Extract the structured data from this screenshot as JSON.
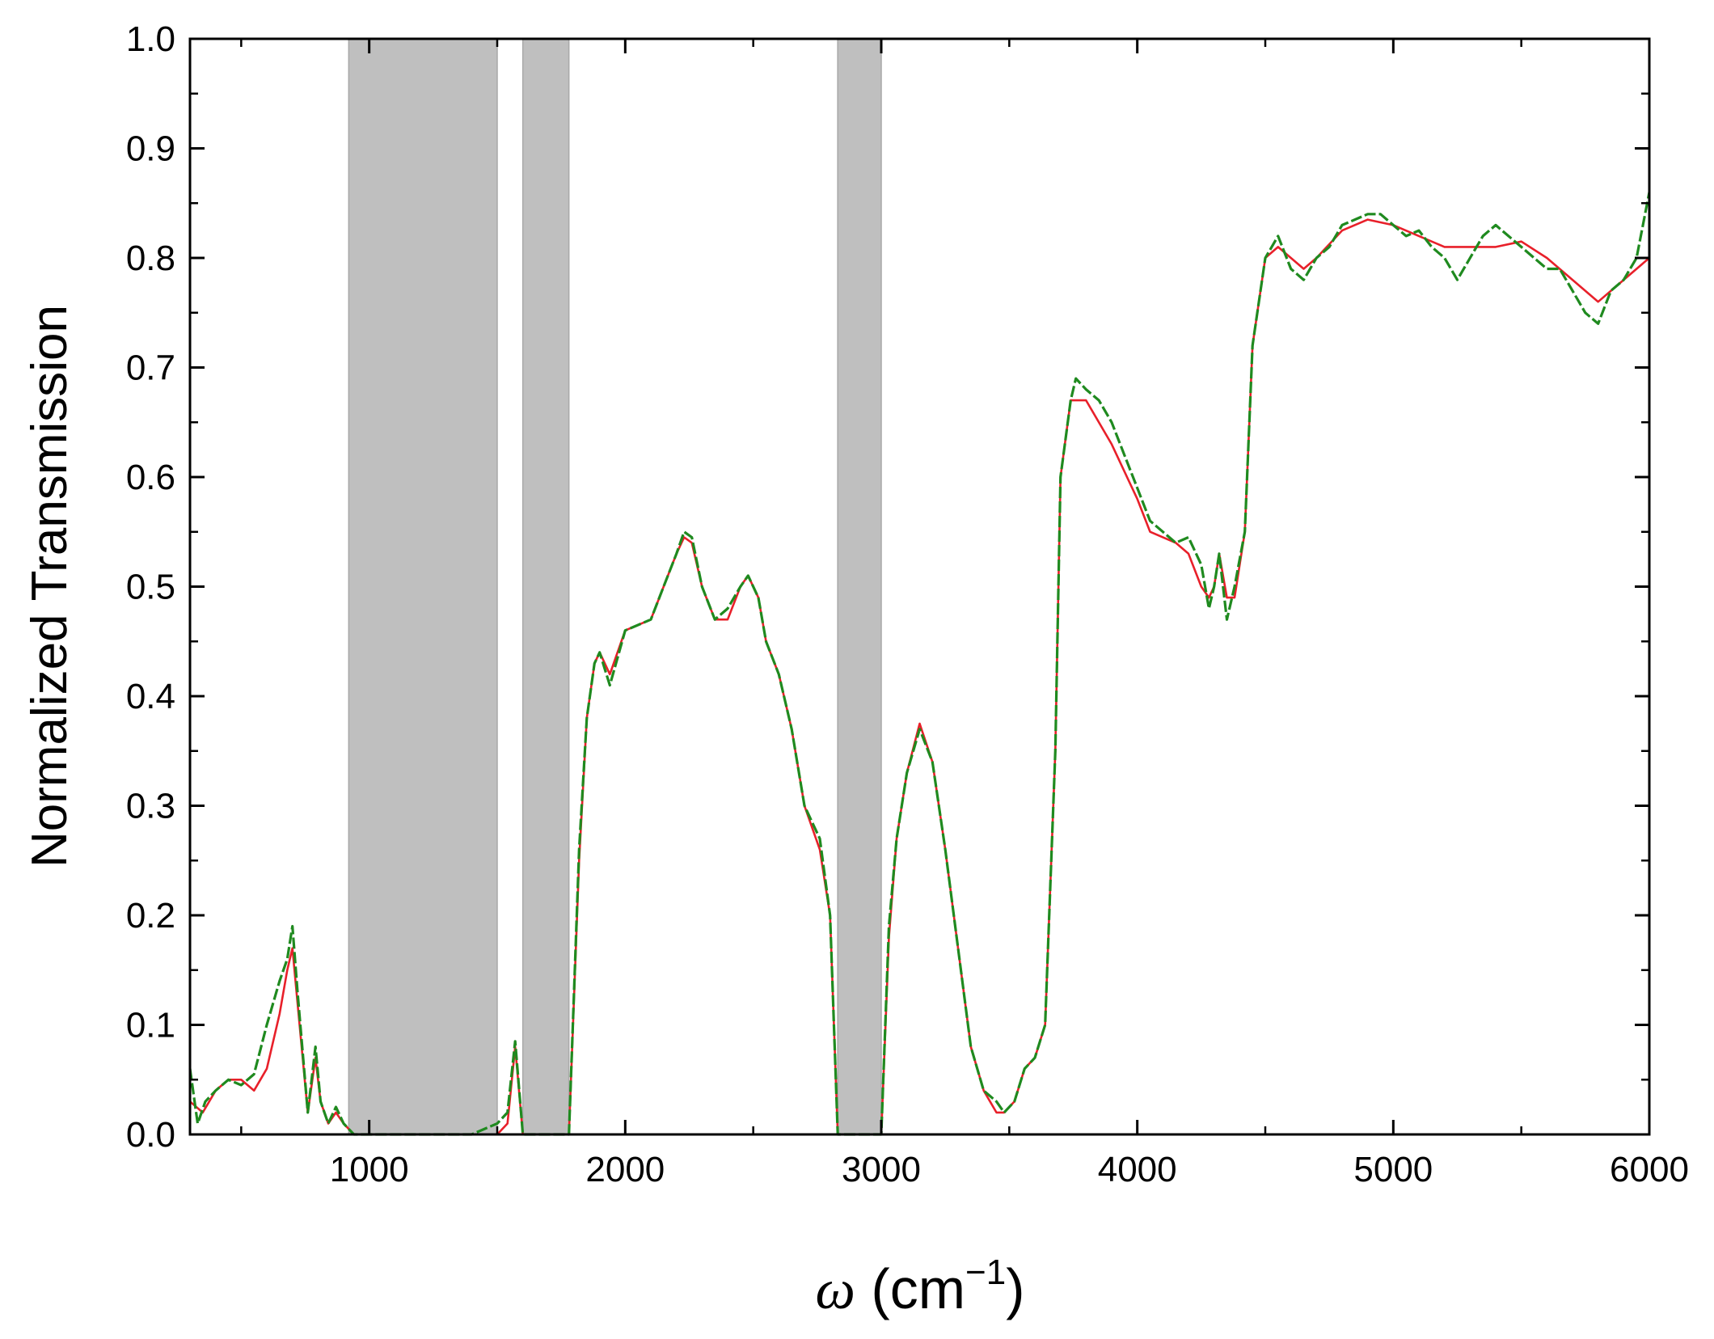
{
  "chart_data": {
    "type": "line",
    "xlabel_symbol": "ω",
    "xlabel_unit_open": " (cm",
    "xlabel_unit_sup": "−1",
    "xlabel_unit_close": ")",
    "ylabel": "Normalized Transmission",
    "xlim": [
      300,
      6000
    ],
    "ylim": [
      0.0,
      1.0
    ],
    "xticks": [
      1000,
      2000,
      3000,
      4000,
      5000,
      6000
    ],
    "xtick_labels": [
      "1000",
      "2000",
      "3000",
      "4000",
      "5000",
      "6000"
    ],
    "yticks": [
      0.0,
      0.1,
      0.2,
      0.3,
      0.4,
      0.5,
      0.6,
      0.7,
      0.8,
      0.9,
      1.0
    ],
    "ytick_labels": [
      "0.0",
      "0.1",
      "0.2",
      "0.3",
      "0.4",
      "0.5",
      "0.6",
      "0.7",
      "0.8",
      "0.9",
      "1.0"
    ],
    "grid": false,
    "legend": "none",
    "shaded_regions": [
      {
        "x0": 920,
        "x1": 1500
      },
      {
        "x0": 1600,
        "x1": 1780
      },
      {
        "x0": 2830,
        "x1": 3000
      }
    ],
    "shade_color": "#bfbfbf",
    "series": [
      {
        "style": "solid",
        "color": "#e8202a",
        "x": [
          300,
          350,
          400,
          450,
          500,
          550,
          600,
          650,
          680,
          700,
          720,
          760,
          790,
          810,
          840,
          870,
          900,
          940,
          1000,
          1500,
          1540,
          1570,
          1600,
          1640,
          1780,
          1820,
          1850,
          1880,
          1900,
          1940,
          2000,
          2100,
          2150,
          2200,
          2230,
          2260,
          2300,
          2350,
          2400,
          2450,
          2480,
          2520,
          2550,
          2600,
          2650,
          2700,
          2760,
          2800,
          2830,
          3000,
          3030,
          3060,
          3100,
          3150,
          3200,
          3250,
          3300,
          3350,
          3400,
          3450,
          3480,
          3520,
          3560,
          3600,
          3640,
          3680,
          3700,
          3740,
          3800,
          3900,
          4000,
          4050,
          4150,
          4200,
          4250,
          4280,
          4300,
          4320,
          4350,
          4380,
          4420,
          4450,
          4500,
          4550,
          4600,
          4650,
          4700,
          4800,
          4900,
          5000,
          5100,
          5200,
          5300,
          5400,
          5500,
          5600,
          5700,
          5800,
          5900,
          6000
        ],
        "y": [
          0.03,
          0.02,
          0.04,
          0.05,
          0.05,
          0.04,
          0.06,
          0.11,
          0.15,
          0.17,
          0.12,
          0.02,
          0.07,
          0.03,
          0.01,
          0.02,
          0.01,
          0.0,
          0.0,
          0.0,
          0.01,
          0.08,
          0.0,
          0.0,
          0.0,
          0.25,
          0.38,
          0.43,
          0.44,
          0.42,
          0.46,
          0.47,
          0.5,
          0.53,
          0.545,
          0.54,
          0.5,
          0.47,
          0.47,
          0.5,
          0.51,
          0.49,
          0.45,
          0.42,
          0.37,
          0.3,
          0.26,
          0.2,
          0.0,
          0.0,
          0.18,
          0.27,
          0.33,
          0.375,
          0.34,
          0.26,
          0.17,
          0.08,
          0.04,
          0.02,
          0.02,
          0.03,
          0.06,
          0.07,
          0.1,
          0.35,
          0.6,
          0.67,
          0.67,
          0.63,
          0.58,
          0.55,
          0.54,
          0.53,
          0.5,
          0.49,
          0.5,
          0.53,
          0.49,
          0.49,
          0.55,
          0.72,
          0.8,
          0.81,
          0.8,
          0.79,
          0.8,
          0.825,
          0.835,
          0.83,
          0.82,
          0.81,
          0.81,
          0.81,
          0.815,
          0.8,
          0.78,
          0.76,
          0.78,
          0.8
        ]
      },
      {
        "style": "dashed",
        "color": "#1f8a1f",
        "x": [
          300,
          330,
          360,
          400,
          450,
          500,
          550,
          600,
          650,
          680,
          700,
          720,
          760,
          790,
          810,
          840,
          870,
          900,
          940,
          1000,
          1400,
          1500,
          1540,
          1570,
          1600,
          1640,
          1780,
          1820,
          1850,
          1880,
          1900,
          1940,
          2000,
          2100,
          2150,
          2200,
          2230,
          2260,
          2300,
          2350,
          2400,
          2450,
          2480,
          2520,
          2550,
          2600,
          2650,
          2700,
          2760,
          2800,
          2830,
          3000,
          3030,
          3060,
          3100,
          3150,
          3200,
          3250,
          3300,
          3350,
          3400,
          3450,
          3480,
          3520,
          3560,
          3600,
          3640,
          3680,
          3700,
          3740,
          3760,
          3800,
          3850,
          3900,
          3950,
          4000,
          4050,
          4100,
          4150,
          4200,
          4250,
          4280,
          4300,
          4320,
          4350,
          4380,
          4420,
          4450,
          4500,
          4550,
          4600,
          4650,
          4700,
          4750,
          4800,
          4850,
          4900,
          4950,
          5000,
          5050,
          5100,
          5150,
          5200,
          5250,
          5300,
          5350,
          5400,
          5450,
          5500,
          5550,
          5600,
          5650,
          5700,
          5750,
          5800,
          5850,
          5900,
          5950,
          6000
        ],
        "y": [
          0.06,
          0.01,
          0.03,
          0.04,
          0.05,
          0.045,
          0.055,
          0.1,
          0.14,
          0.16,
          0.19,
          0.13,
          0.02,
          0.08,
          0.03,
          0.01,
          0.025,
          0.01,
          0.0,
          0.0,
          0.0,
          0.01,
          0.02,
          0.085,
          0.0,
          0.0,
          0.0,
          0.26,
          0.38,
          0.43,
          0.44,
          0.41,
          0.46,
          0.47,
          0.5,
          0.53,
          0.55,
          0.545,
          0.5,
          0.47,
          0.48,
          0.5,
          0.51,
          0.49,
          0.45,
          0.42,
          0.37,
          0.3,
          0.27,
          0.2,
          0.0,
          0.0,
          0.19,
          0.27,
          0.33,
          0.37,
          0.34,
          0.26,
          0.17,
          0.08,
          0.04,
          0.03,
          0.02,
          0.03,
          0.06,
          0.07,
          0.1,
          0.35,
          0.6,
          0.67,
          0.69,
          0.68,
          0.67,
          0.65,
          0.62,
          0.59,
          0.56,
          0.55,
          0.54,
          0.545,
          0.52,
          0.48,
          0.5,
          0.53,
          0.47,
          0.5,
          0.55,
          0.72,
          0.8,
          0.82,
          0.79,
          0.78,
          0.8,
          0.81,
          0.83,
          0.835,
          0.84,
          0.84,
          0.83,
          0.82,
          0.825,
          0.81,
          0.8,
          0.78,
          0.8,
          0.82,
          0.83,
          0.82,
          0.81,
          0.8,
          0.79,
          0.79,
          0.77,
          0.75,
          0.74,
          0.77,
          0.78,
          0.8,
          0.86
        ]
      }
    ]
  }
}
